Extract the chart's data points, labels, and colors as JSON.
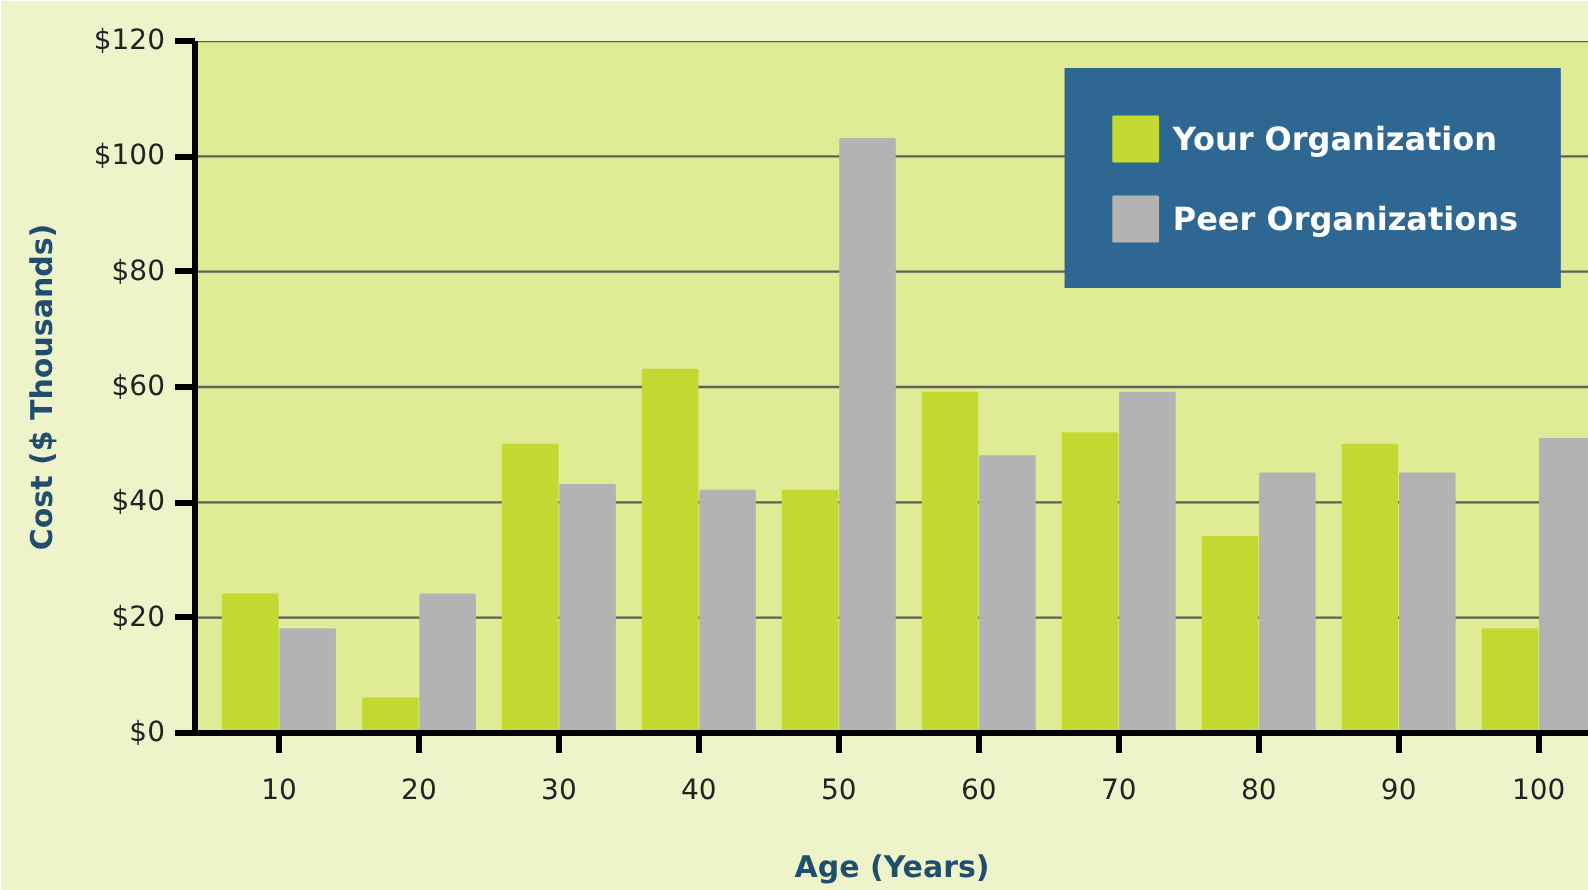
{
  "chart_data": {
    "type": "bar",
    "xlabel": "Age (Years)",
    "ylabel": "Cost ($ Thousands)",
    "categories": [
      "10",
      "20",
      "30",
      "40",
      "50",
      "60",
      "70",
      "80",
      "90",
      "100"
    ],
    "series": [
      {
        "name": "Your Organization",
        "color": "#c3d932",
        "values": [
          24,
          6,
          50,
          63,
          42,
          59,
          52,
          34,
          50,
          18
        ]
      },
      {
        "name": "Peer Organizations",
        "color": "#b3b3b3",
        "values": [
          18,
          24,
          43,
          42,
          103,
          48,
          59,
          45,
          45,
          51
        ]
      }
    ],
    "ylim": [
      0,
      120
    ],
    "yticks": [
      {
        "value": 0,
        "label": "$0"
      },
      {
        "value": 20,
        "label": "$20"
      },
      {
        "value": 40,
        "label": "$40"
      },
      {
        "value": 60,
        "label": "$60"
      },
      {
        "value": 80,
        "label": "$80"
      },
      {
        "value": 100,
        "label": "$100"
      },
      {
        "value": 120,
        "label": "$120"
      }
    ],
    "grid": "y",
    "legend": "top right"
  }
}
